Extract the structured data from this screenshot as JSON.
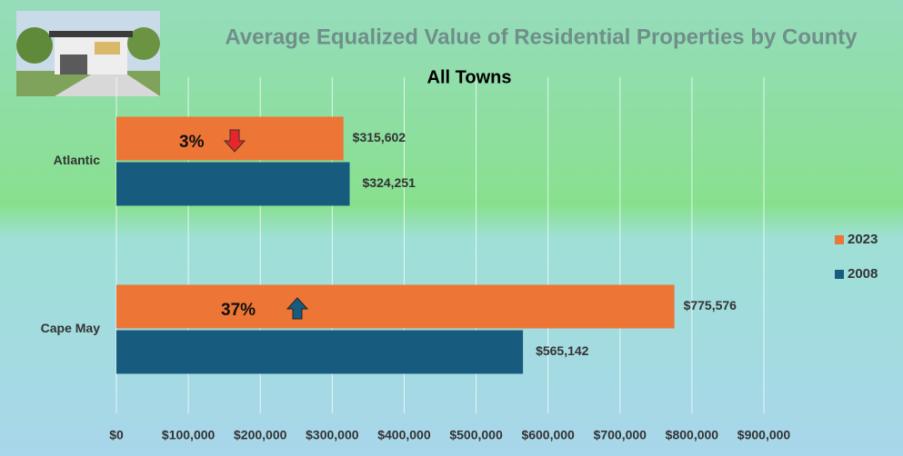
{
  "chart_data": {
    "type": "hbar",
    "title": "Average Equalized Value of Residential Properties by County",
    "subtitle": "All Towns",
    "categories": [
      "Atlantic",
      "Cape May"
    ],
    "series": [
      {
        "name": "2023",
        "color": "#ed7535",
        "values": [
          315602,
          775576
        ],
        "value_labels": [
          "$315,602",
          "$775,576"
        ]
      },
      {
        "name": "2008",
        "color": "#175c7e",
        "values": [
          324251,
          565142
        ],
        "value_labels": [
          "$324,251",
          "$565,142"
        ]
      }
    ],
    "xlim": [
      0,
      900000
    ],
    "xticks": [
      {
        "value": 0,
        "label": "$0"
      },
      {
        "value": 100000,
        "label": "$100,000"
      },
      {
        "value": 200000,
        "label": "$200,000"
      },
      {
        "value": 300000,
        "label": "$300,000"
      },
      {
        "value": 400000,
        "label": "$400,000"
      },
      {
        "value": 500000,
        "label": "$500,000"
      },
      {
        "value": 600000,
        "label": "$600,000"
      },
      {
        "value": 700000,
        "label": "$700,000"
      },
      {
        "value": 800000,
        "label": "$800,000"
      },
      {
        "value": 900000,
        "label": "$900,000"
      }
    ],
    "grid": true,
    "legend": "right",
    "annotations": [
      "3%",
      "37%"
    ]
  }
}
